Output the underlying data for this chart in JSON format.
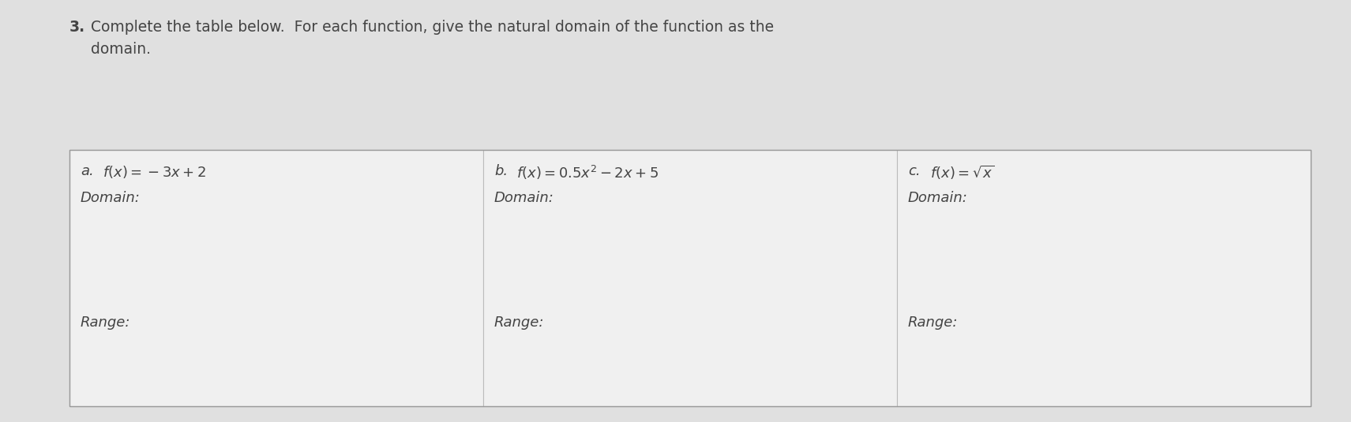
{
  "title_number": "3.",
  "title_text": "Complete the table below.  For each function, give the natural domain of the function as the\ndomain.",
  "title_fontsize": 13.5,
  "page_bg": "#e0e0e0",
  "cell_bg": "#f0f0f0",
  "border_color": "#bbbbbb",
  "text_color": "#444444",
  "label_fontsize": 13,
  "domain_range_fontsize": 13,
  "col_a_label": "a.",
  "col_a_func": "$f(x) = -3x + 2$",
  "col_a_domain": "Domain:",
  "col_a_range": "Range:",
  "col_b_label": "b.",
  "col_b_func": "$f(x) = 0.5x^2 - 2x + 5$",
  "col_b_domain": "Domain:",
  "col_b_range": "Range:",
  "col_c_label": "c.",
  "col_c_func": "$f(x) = \\sqrt{x}$",
  "col_c_domain": "Domain:",
  "col_c_range": "Range:",
  "figsize": [
    17.11,
    5.35
  ],
  "dpi": 100
}
